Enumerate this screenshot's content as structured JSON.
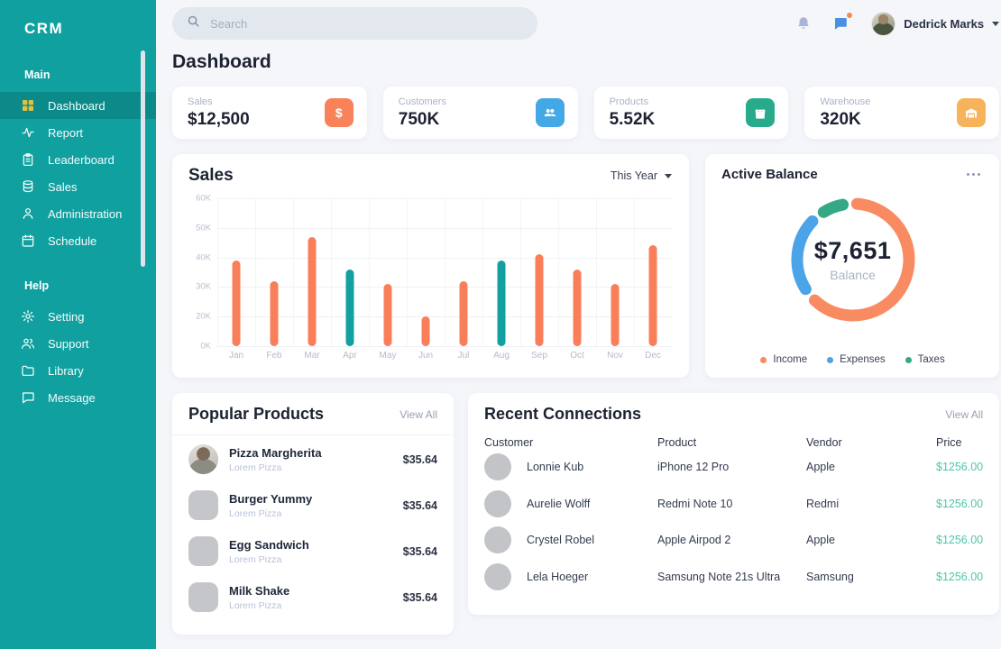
{
  "app": {
    "logo": "CRM"
  },
  "sidebar": {
    "sections": [
      {
        "label": "Main",
        "items": [
          {
            "label": "Dashboard",
            "icon": "dashboard-icon",
            "active": true
          },
          {
            "label": "Report",
            "icon": "report-icon",
            "active": false
          },
          {
            "label": "Leaderboard",
            "icon": "leaderboard-icon",
            "active": false
          },
          {
            "label": "Sales",
            "icon": "sales-icon",
            "active": false
          },
          {
            "label": "Administration",
            "icon": "administration-icon",
            "active": false
          },
          {
            "label": "Schedule",
            "icon": "schedule-icon",
            "active": false
          }
        ]
      },
      {
        "label": "Help",
        "items": [
          {
            "label": "Setting",
            "icon": "setting-icon",
            "active": false
          },
          {
            "label": "Support",
            "icon": "support-icon",
            "active": false
          },
          {
            "label": "Library",
            "icon": "library-icon",
            "active": false
          },
          {
            "label": "Message",
            "icon": "message-icon",
            "active": false
          }
        ]
      }
    ],
    "active_item_color": "#0c8a8a",
    "active_icon_color": "#e0c23c"
  },
  "topbar": {
    "search_placeholder": "Search",
    "user_name": "Dedrick Marks",
    "icons": [
      "bell-icon",
      "message-flag-icon"
    ]
  },
  "page": {
    "title": "Dashboard"
  },
  "stat_cards": [
    {
      "label": "Sales",
      "value": "$12,500",
      "icon": "dollar-icon",
      "color": "#f9825b"
    },
    {
      "label": "Customers",
      "value": "750K",
      "icon": "customers-icon",
      "color": "#45a8e6"
    },
    {
      "label": "Products",
      "value": "5.52K",
      "icon": "shopping-bag-icon",
      "color": "#27ab8b"
    },
    {
      "label": "Warehouse",
      "value": "320K",
      "icon": "warehouse-icon",
      "color": "#f6b35c"
    }
  ],
  "chart_data": [
    {
      "type": "bar",
      "title": "Sales",
      "filter_label": "This Year",
      "categories": [
        "Jan",
        "Feb",
        "Mar",
        "Apr",
        "May",
        "Jun",
        "Jul",
        "Aug",
        "Sep",
        "Oct",
        "Nov",
        "Dec"
      ],
      "values": [
        39,
        32,
        47,
        36,
        31,
        20,
        32,
        39,
        41,
        36,
        31,
        44
      ],
      "unit": "K",
      "y_ticks": [
        "60K",
        "50K",
        "40K",
        "30K",
        "20K",
        "0K"
      ],
      "ylim_top": 60,
      "grid": true,
      "bar_color": "#f97f5b",
      "highlight_color": "#12a0a0",
      "highlighted_indices": [
        3,
        7
      ]
    },
    {
      "type": "donut",
      "title": "Active Balance",
      "center_value": "$7,651",
      "center_label": "Balance",
      "segments": [
        {
          "name": "Income",
          "percent": 65,
          "color": "#f98b63"
        },
        {
          "name": "Expenses",
          "percent": 25,
          "color": "#4ba3e8"
        },
        {
          "name": "Taxes",
          "percent": 10,
          "color": "#35a985"
        }
      ],
      "legend_position": "bottom"
    }
  ],
  "popular_products": {
    "title": "Popular Products",
    "view_all": "View All",
    "items": [
      {
        "name": "Pizza Margherita",
        "subtitle": "Lorem Pizza",
        "price": "$35.64",
        "thumb": "photo"
      },
      {
        "name": "Burger Yummy",
        "subtitle": "Lorem Pizza",
        "price": "$35.64",
        "thumb": "placeholder"
      },
      {
        "name": "Egg Sandwich",
        "subtitle": "Lorem Pizza",
        "price": "$35.64",
        "thumb": "placeholder"
      },
      {
        "name": "Milk Shake",
        "subtitle": "Lorem Pizza",
        "price": "$35.64",
        "thumb": "placeholder"
      }
    ]
  },
  "recent_connections": {
    "title": "Recent Connections",
    "view_all": "View All",
    "columns": [
      "Customer",
      "Product",
      "Vendor",
      "Price"
    ],
    "price_color": "#4fc5aa",
    "rows": [
      {
        "customer": "Lonnie Kub",
        "product": "iPhone 12 Pro",
        "vendor": "Apple",
        "price": "$1256.00"
      },
      {
        "customer": "Aurelie Wolff",
        "product": "Redmi Note 10",
        "vendor": "Redmi",
        "price": "$1256.00"
      },
      {
        "customer": "Crystel Robel",
        "product": "Apple Airpod 2",
        "vendor": "Apple",
        "price": "$1256.00"
      },
      {
        "customer": "Lela Hoeger",
        "product": "Samsung Note 21s Ultra",
        "vendor": "Samsung",
        "price": "$1256.00"
      }
    ]
  }
}
